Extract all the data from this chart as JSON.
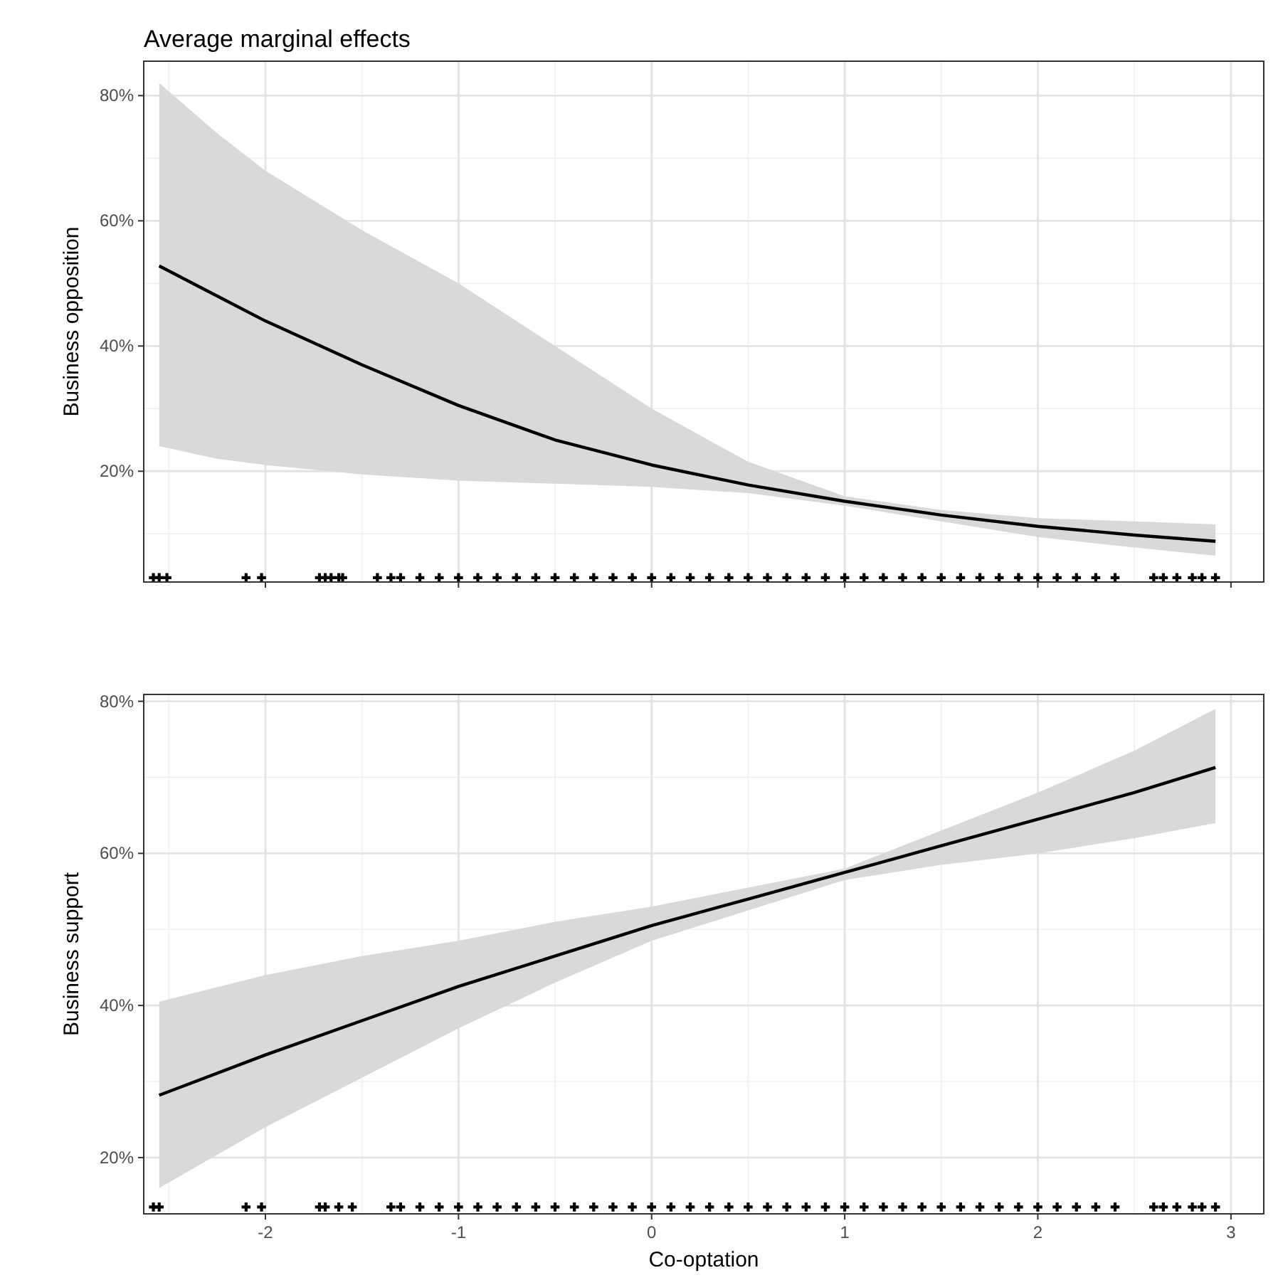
{
  "chart_data": [
    {
      "type": "line",
      "title": "Average marginal effects",
      "ylabel": "Business opposition",
      "xlim": [
        -2.63,
        3.17
      ],
      "xticks": [
        -2,
        -1,
        0,
        1,
        2,
        3
      ],
      "ylim": [
        2.3,
        85.5
      ],
      "yticks": [
        {
          "value": 20,
          "label": "20%"
        },
        {
          "value": 40,
          "label": "40%"
        },
        {
          "value": 60,
          "label": "60%"
        },
        {
          "value": 80,
          "label": "80%"
        }
      ],
      "grid": true,
      "tick_labels": "y",
      "series": [
        {
          "type": "line",
          "color": "#000000",
          "x": [
            -2.55,
            -2.25,
            -2,
            -1.5,
            -1,
            -0.5,
            0,
            0.5,
            1,
            1.5,
            2,
            2.5,
            2.92
          ],
          "values": [
            52.8,
            48,
            44,
            37,
            30.5,
            25,
            21,
            17.8,
            15.2,
            13,
            11.2,
            9.8,
            8.8
          ],
          "lower": [
            24,
            22,
            21,
            19.5,
            18.5,
            18,
            17.5,
            16.5,
            14.5,
            12,
            9.5,
            7.8,
            6.5
          ],
          "upper": [
            82,
            74,
            68,
            58.5,
            50,
            40,
            30,
            21.5,
            16,
            13.8,
            12.5,
            12,
            11.5
          ]
        },
        {
          "type": "scatter",
          "marker": "cross",
          "color": "#000000",
          "x": [
            -2.58,
            -2.55,
            -2.51,
            -2.1,
            -2.02,
            -1.72,
            -1.69,
            -1.66,
            -1.62,
            -1.6,
            -1.42,
            -1.35,
            -1.3,
            -1.2,
            -1.1,
            -1,
            -0.9,
            -0.8,
            -0.7,
            -0.6,
            -0.5,
            -0.4,
            -0.3,
            -0.2,
            -0.1,
            0,
            0.1,
            0.2,
            0.3,
            0.4,
            0.5,
            0.6,
            0.7,
            0.8,
            0.9,
            1,
            1.1,
            1.2,
            1.3,
            1.4,
            1.5,
            1.6,
            1.7,
            1.8,
            1.9,
            2,
            2.1,
            2.2,
            2.3,
            2.4,
            2.6,
            2.65,
            2.72,
            2.8,
            2.85,
            2.92
          ],
          "values": [
            3,
            3,
            3,
            3,
            3,
            3,
            3,
            3,
            3,
            3,
            3,
            3,
            3,
            3,
            3,
            3,
            3,
            3,
            3,
            3,
            3,
            3,
            3,
            3,
            3,
            3,
            3,
            3,
            3,
            3,
            3,
            3,
            3,
            3,
            3,
            3,
            3,
            3,
            3,
            3,
            3,
            3,
            3,
            3,
            3,
            3,
            3,
            3,
            3,
            3,
            3,
            3,
            3,
            3,
            3,
            3
          ]
        }
      ]
    },
    {
      "type": "line",
      "ylabel": "Business support",
      "xlabel": "Co-optation",
      "xlim": [
        -2.63,
        3.17
      ],
      "xticks": [
        -2,
        -1,
        0,
        1,
        2,
        3
      ],
      "ylim": [
        12.6,
        80.9
      ],
      "yticks": [
        {
          "value": 20,
          "label": "20%"
        },
        {
          "value": 40,
          "label": "40%"
        },
        {
          "value": 60,
          "label": "60%"
        },
        {
          "value": 80,
          "label": "80%"
        }
      ],
      "grid": true,
      "series": [
        {
          "type": "line",
          "color": "#000000",
          "x": [
            -2.55,
            -2,
            -1.5,
            -1,
            -0.5,
            0,
            0.5,
            1,
            1.5,
            2,
            2.5,
            2.92
          ],
          "values": [
            28.2,
            33.5,
            38,
            42.5,
            46.5,
            50.5,
            54,
            57.5,
            61,
            64.5,
            68,
            71.3
          ],
          "lower": [
            16,
            24,
            30.5,
            37,
            43,
            48.5,
            52.5,
            56.5,
            58.5,
            60,
            62,
            64
          ],
          "upper": [
            40.5,
            44,
            46.5,
            48.5,
            51,
            53,
            55.5,
            58,
            63,
            68,
            73.5,
            79
          ]
        },
        {
          "type": "scatter",
          "marker": "cross",
          "color": "#000000",
          "x": [
            -2.58,
            -2.55,
            -2.1,
            -2.02,
            -1.72,
            -1.69,
            -1.62,
            -1.55,
            -1.35,
            -1.3,
            -1.2,
            -1.1,
            -1,
            -0.9,
            -0.8,
            -0.7,
            -0.6,
            -0.5,
            -0.4,
            -0.3,
            -0.2,
            -0.1,
            0,
            0.1,
            0.2,
            0.3,
            0.4,
            0.5,
            0.6,
            0.7,
            0.8,
            0.9,
            1,
            1.1,
            1.2,
            1.3,
            1.4,
            1.5,
            1.6,
            1.7,
            1.8,
            1.9,
            2,
            2.1,
            2.2,
            2.3,
            2.4,
            2.6,
            2.65,
            2.72,
            2.8,
            2.85,
            2.92
          ],
          "values": [
            13.5,
            13.5,
            13.5,
            13.5,
            13.5,
            13.5,
            13.5,
            13.5,
            13.5,
            13.5,
            13.5,
            13.5,
            13.5,
            13.5,
            13.5,
            13.5,
            13.5,
            13.5,
            13.5,
            13.5,
            13.5,
            13.5,
            13.5,
            13.5,
            13.5,
            13.5,
            13.5,
            13.5,
            13.5,
            13.5,
            13.5,
            13.5,
            13.5,
            13.5,
            13.5,
            13.5,
            13.5,
            13.5,
            13.5,
            13.5,
            13.5,
            13.5,
            13.5,
            13.5,
            13.5,
            13.5,
            13.5,
            13.5,
            13.5,
            13.5,
            13.5,
            13.5,
            13.5
          ]
        }
      ]
    }
  ]
}
